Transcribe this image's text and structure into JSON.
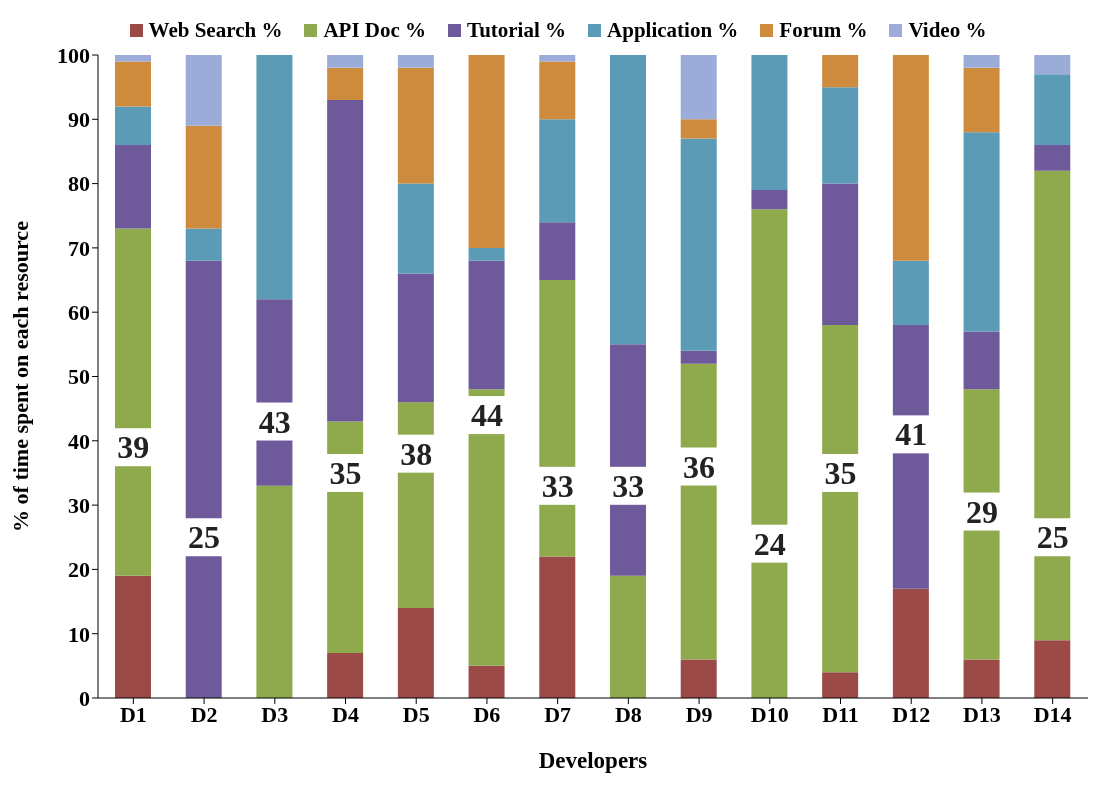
{
  "chart_data": {
    "type": "bar",
    "stacked": true,
    "xlabel": "Developers",
    "ylabel": "% of time spent on each resource",
    "categories": [
      "D1",
      "D2",
      "D3",
      "D4",
      "D5",
      "D6",
      "D7",
      "D8",
      "D9",
      "D10",
      "D11",
      "D12",
      "D13",
      "D14"
    ],
    "series": [
      {
        "name": "Web Search %",
        "color": "#9b4a48",
        "values": [
          19,
          0,
          0,
          7,
          14,
          5,
          22,
          0,
          6,
          0,
          4,
          17,
          6,
          9
        ]
      },
      {
        "name": "API Doc %",
        "color": "#8faa4c",
        "values": [
          54,
          0,
          33,
          36,
          32,
          43,
          43,
          19,
          46,
          76,
          54,
          0,
          42,
          73
        ]
      },
      {
        "name": "Tutorial %",
        "color": "#6e5a9a",
        "values": [
          13,
          68,
          29,
          50,
          20,
          20,
          9,
          36,
          2,
          3,
          22,
          41,
          9,
          4
        ]
      },
      {
        "name": "Application %",
        "color": "#5b9bb5",
        "values": [
          6,
          5,
          38,
          0,
          14,
          2,
          16,
          45,
          33,
          21,
          15,
          10,
          31,
          11
        ]
      },
      {
        "name": "Forum %",
        "color": "#cf8b3d",
        "values": [
          7,
          16,
          0,
          5,
          18,
          30,
          9,
          0,
          3,
          0,
          5,
          32,
          10,
          0
        ]
      },
      {
        "name": "Video %",
        "color": "#9bacd8",
        "values": [
          1,
          11,
          0,
          2,
          2,
          0,
          1,
          0,
          10,
          0,
          0,
          0,
          2,
          3
        ]
      }
    ],
    "ylim": [
      0,
      100
    ],
    "yticks": [
      0,
      10,
      20,
      30,
      40,
      50,
      60,
      70,
      80,
      90,
      100
    ],
    "grid": false,
    "legend": "top",
    "annotations": [
      "39",
      "25",
      "43",
      "35",
      "38",
      "44",
      "33",
      "33",
      "36",
      "24",
      "35",
      "41",
      "29",
      "25"
    ]
  }
}
